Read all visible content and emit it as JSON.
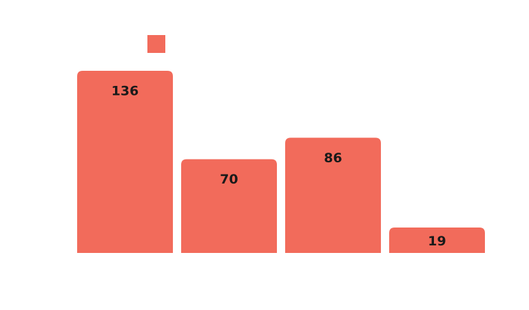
{
  "chart_data": {
    "type": "bar",
    "categories": [
      null,
      null,
      null,
      null
    ],
    "values": [
      136,
      70,
      86,
      19
    ],
    "color": "#f26b5b",
    "data_labels": true,
    "legend": "top-left"
  }
}
